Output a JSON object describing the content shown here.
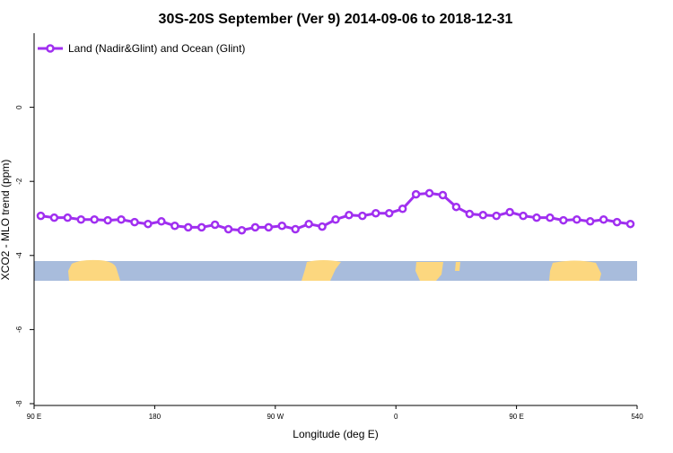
{
  "chart_data": {
    "type": "line",
    "title": "30S-20S September (Ver 9)   2014-09-06 to 2018-12-31",
    "xlabel": "Longitude (deg E)",
    "ylabel": "XCO2 - MLO trend (ppm)",
    "x": [
      95,
      105,
      115,
      125,
      135,
      145,
      155,
      165,
      175,
      185,
      195,
      205,
      215,
      225,
      235,
      245,
      255,
      265,
      275,
      285,
      295,
      305,
      315,
      325,
      335,
      345,
      355,
      365,
      375,
      385,
      395,
      405,
      415,
      425,
      435,
      445,
      455,
      465,
      475,
      485,
      495,
      505,
      515,
      525,
      535
    ],
    "series": [
      {
        "name": "Land (Nadir&Glint) and Ocean (Glint)",
        "color": "#a02ff0",
        "values": [
          -2.93,
          -2.98,
          -2.98,
          -3.03,
          -3.03,
          -3.05,
          -3.03,
          -3.1,
          -3.15,
          -3.08,
          -3.2,
          -3.24,
          -3.24,
          -3.17,
          -3.29,
          -3.32,
          -3.24,
          -3.24,
          -3.2,
          -3.29,
          -3.15,
          -3.22,
          -3.03,
          -2.91,
          -2.93,
          -2.86,
          -2.86,
          -2.74,
          -2.35,
          -2.32,
          -2.37,
          -2.69,
          -2.88,
          -2.91,
          -2.93,
          -2.83,
          -2.93,
          -2.98,
          -2.98,
          -3.05,
          -3.03,
          -3.08,
          -3.03,
          -3.1,
          -3.15
        ]
      }
    ],
    "xlim": [
      90,
      540
    ],
    "xticks": [
      {
        "value": 90,
        "label": "90 E"
      },
      180,
      {
        "value": 270,
        "label": "90 W"
      },
      {
        "value": 360,
        "label": "0"
      },
      {
        "value": 450,
        "label": "90 E"
      },
      540
    ],
    "ylim": [
      -8,
      2
    ],
    "yticks": [
      0,
      -2,
      -4,
      -6,
      -8
    ],
    "legend": "upper left"
  }
}
